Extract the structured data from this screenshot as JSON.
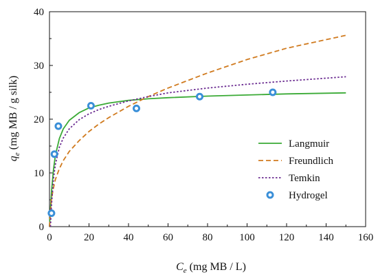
{
  "chart_data": {
    "type": "scatter",
    "title": "",
    "xlabel": {
      "symbol": "C",
      "subscript": "e",
      "rest": " (mg MB / L)"
    },
    "ylabel": {
      "symbol": "q",
      "subscript": "e",
      "rest": " (mg MB / g silk)"
    },
    "xlim": [
      0,
      160
    ],
    "ylim": [
      0,
      40
    ],
    "xticks": [
      "0",
      "20",
      "40",
      "60",
      "80",
      "100",
      "120",
      "140",
      "160"
    ],
    "yticks": [
      "0",
      "10",
      "20",
      "30",
      "40"
    ],
    "grid": false,
    "legend_position": "right-center",
    "series": [
      {
        "name": "Langmuir",
        "kind": "line",
        "dash": "solid",
        "color": "#3aaa35",
        "x": [
          0,
          1,
          2,
          3,
          5,
          7,
          10,
          15,
          20,
          25,
          30,
          40,
          50,
          60,
          80,
          100,
          120,
          150
        ],
        "y": [
          0,
          6.5,
          10.6,
          13.3,
          16.4,
          18.2,
          19.8,
          21.2,
          22.1,
          22.6,
          23.0,
          23.5,
          23.8,
          24.0,
          24.3,
          24.5,
          24.7,
          24.9
        ]
      },
      {
        "name": "Freundlich",
        "kind": "line",
        "dash": "dashed",
        "color": "#d07a1e",
        "x": [
          0,
          1,
          2,
          3,
          5,
          7,
          10,
          15,
          20,
          25,
          30,
          40,
          50,
          60,
          80,
          100,
          120,
          150
        ],
        "y": [
          0,
          5.2,
          7.2,
          8.8,
          10.8,
          12.3,
          14.0,
          16.0,
          17.7,
          19.1,
          20.3,
          22.4,
          24.2,
          25.8,
          28.6,
          31.1,
          33.2,
          35.6
        ]
      },
      {
        "name": "Temkin",
        "kind": "line",
        "dash": "dotted",
        "color": "#6b2c91",
        "x": [
          0.5,
          1,
          2,
          3,
          5,
          7,
          10,
          15,
          20,
          25,
          30,
          40,
          50,
          60,
          80,
          100,
          120,
          150
        ],
        "y": [
          0,
          4.0,
          8.9,
          11.6,
          14.8,
          16.5,
          18.2,
          19.9,
          21.0,
          21.8,
          22.4,
          23.4,
          24.2,
          24.9,
          25.8,
          26.5,
          27.1,
          27.9
        ]
      },
      {
        "name": "Hydrogel",
        "kind": "scatter",
        "marker": "open-circle",
        "color": "#3a8fd8",
        "x": [
          1,
          2.5,
          4.5,
          21,
          44,
          76,
          113
        ],
        "y": [
          2.5,
          13.5,
          18.7,
          22.5,
          22.0,
          24.2,
          25.0
        ]
      }
    ]
  }
}
